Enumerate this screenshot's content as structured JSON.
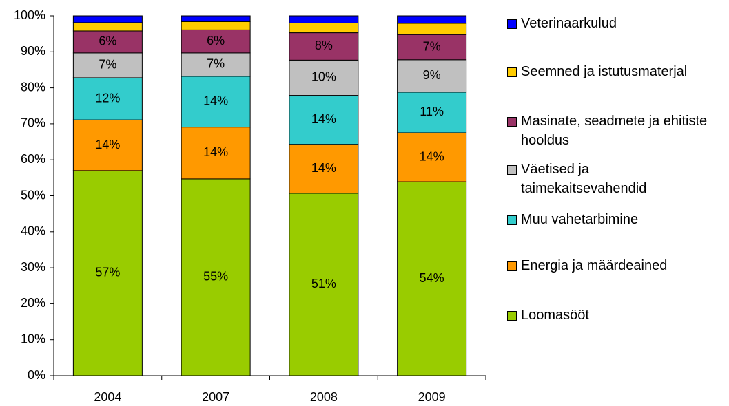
{
  "chart_data": {
    "type": "stacked_bar",
    "categories": [
      "2004",
      "2007",
      "2008",
      "2009"
    ],
    "series": [
      {
        "name": "Loomasööt",
        "color": "#99cc00",
        "values": [
          57.0,
          54.7,
          50.7,
          53.9
        ],
        "value_labels": [
          "57%",
          "55%",
          "51%",
          "54%"
        ]
      },
      {
        "name": "Energia ja määrdeained",
        "color": "#ff9900",
        "values": [
          14.1,
          14.4,
          13.6,
          13.6
        ],
        "value_labels": [
          "14%",
          "14%",
          "14%",
          "14%"
        ]
      },
      {
        "name": "Muu vahetarbimine",
        "color": "#33cccc",
        "values": [
          11.7,
          14.1,
          13.6,
          11.3
        ],
        "value_labels": [
          "12%",
          "14%",
          "14%",
          "11%"
        ]
      },
      {
        "name": "Väetised ja taimekaitsevahendid",
        "color": "#c0c0c0",
        "values": [
          6.9,
          6.5,
          9.8,
          9.0
        ],
        "value_labels": [
          "7%",
          "7%",
          "10%",
          "9%"
        ]
      },
      {
        "name": "Masinate, seadmete ja ehitiste hooldus",
        "color": "#993366",
        "values": [
          6.1,
          6.4,
          7.6,
          7.0
        ],
        "value_labels": [
          "6%",
          "6%",
          "8%",
          "7%"
        ]
      },
      {
        "name": "Seemned ja istutusmaterjal",
        "color": "#ffcc00",
        "values": [
          2.3,
          2.3,
          2.7,
          3.1
        ]
      },
      {
        "name": "Veterinaarkulud",
        "color": "#0000ff",
        "values": [
          1.9,
          1.6,
          2.0,
          2.1
        ]
      }
    ],
    "ylim": [
      0,
      100
    ],
    "yticks": [
      {
        "value": 0,
        "label": "0%"
      },
      {
        "value": 10,
        "label": "10%"
      },
      {
        "value": 20,
        "label": "20%"
      },
      {
        "value": 30,
        "label": "30%"
      },
      {
        "value": 40,
        "label": "40%"
      },
      {
        "value": 50,
        "label": "50%"
      },
      {
        "value": 60,
        "label": "60%"
      },
      {
        "value": 70,
        "label": "70%"
      },
      {
        "value": 80,
        "label": "80%"
      },
      {
        "value": 90,
        "label": "90%"
      },
      {
        "value": 100,
        "label": "100%"
      }
    ],
    "legend": "right",
    "grid": false
  }
}
